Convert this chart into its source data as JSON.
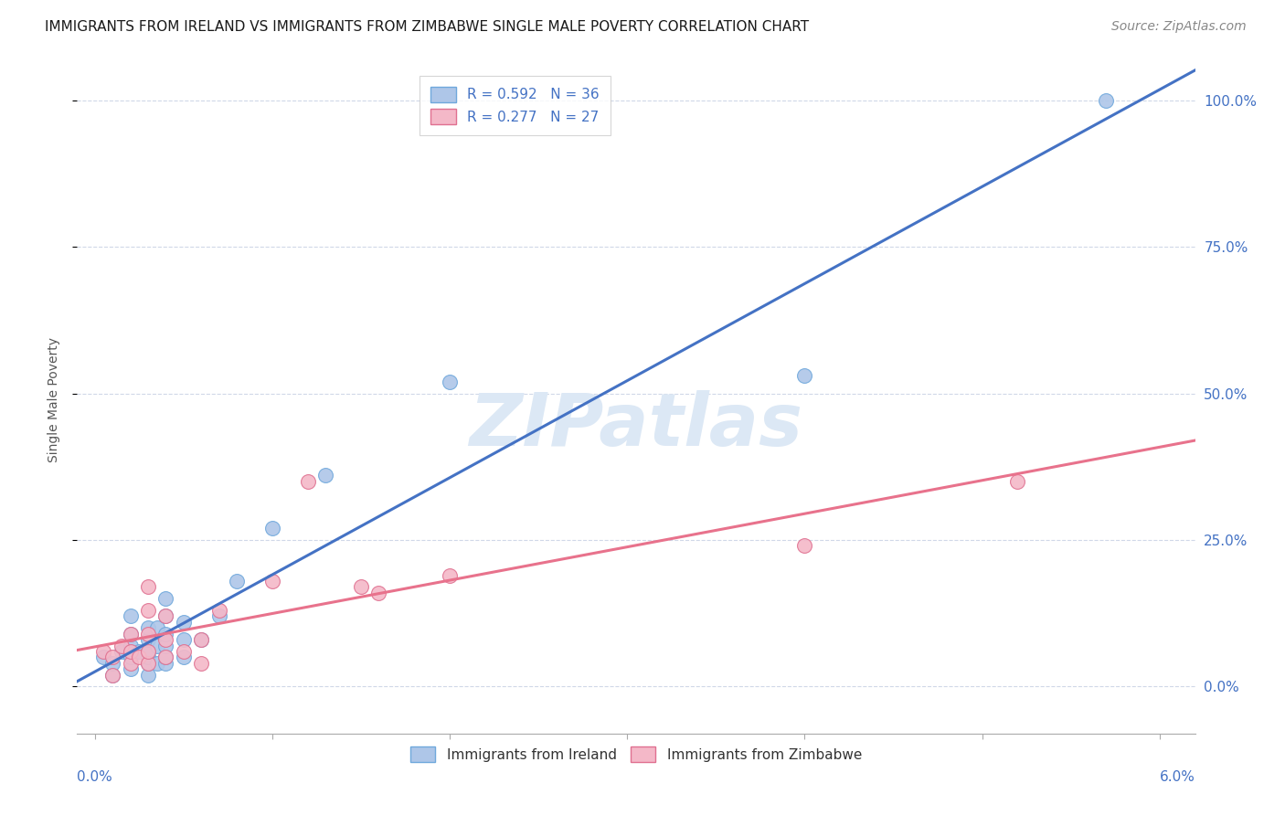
{
  "title": "IMMIGRANTS FROM IRELAND VS IMMIGRANTS FROM ZIMBABWE SINGLE MALE POVERTY CORRELATION CHART",
  "source": "Source: ZipAtlas.com",
  "ylabel": "Single Male Poverty",
  "ytick_labels": [
    "0.0%",
    "25.0%",
    "50.0%",
    "75.0%",
    "100.0%"
  ],
  "ytick_values": [
    0.0,
    0.25,
    0.5,
    0.75,
    1.0
  ],
  "xtick_values": [
    0.0,
    0.01,
    0.02,
    0.03,
    0.04,
    0.05,
    0.06
  ],
  "xlim": [
    -0.001,
    0.062
  ],
  "ylim": [
    -0.08,
    1.06
  ],
  "legend_entry_ireland": "R = 0.592   N = 36",
  "legend_entry_zimbabwe": "R = 0.277   N = 27",
  "ireland_color": "#aec6e8",
  "ireland_edge": "#6fa8dc",
  "ireland_line": "#4472c4",
  "zimbabwe_color": "#f4b8c8",
  "zimbabwe_edge": "#e07090",
  "zimbabwe_line": "#e8728c",
  "ireland_x": [
    0.0005,
    0.001,
    0.001,
    0.0015,
    0.002,
    0.002,
    0.002,
    0.002,
    0.002,
    0.0025,
    0.003,
    0.003,
    0.003,
    0.003,
    0.003,
    0.003,
    0.0035,
    0.0035,
    0.0035,
    0.004,
    0.004,
    0.004,
    0.004,
    0.004,
    0.004,
    0.005,
    0.005,
    0.005,
    0.006,
    0.007,
    0.008,
    0.01,
    0.013,
    0.02,
    0.04,
    0.057
  ],
  "ireland_y": [
    0.05,
    0.02,
    0.04,
    0.06,
    0.03,
    0.05,
    0.07,
    0.09,
    0.12,
    0.06,
    0.02,
    0.04,
    0.05,
    0.06,
    0.08,
    0.1,
    0.04,
    0.07,
    0.1,
    0.04,
    0.05,
    0.07,
    0.09,
    0.12,
    0.15,
    0.05,
    0.08,
    0.11,
    0.08,
    0.12,
    0.18,
    0.27,
    0.36,
    0.52,
    0.53,
    1.0
  ],
  "zimbabwe_x": [
    0.0005,
    0.001,
    0.001,
    0.0015,
    0.002,
    0.002,
    0.002,
    0.0025,
    0.003,
    0.003,
    0.003,
    0.003,
    0.003,
    0.004,
    0.004,
    0.004,
    0.005,
    0.006,
    0.006,
    0.007,
    0.01,
    0.012,
    0.015,
    0.016,
    0.02,
    0.04,
    0.052
  ],
  "zimbabwe_y": [
    0.06,
    0.02,
    0.05,
    0.07,
    0.04,
    0.06,
    0.09,
    0.05,
    0.04,
    0.06,
    0.09,
    0.13,
    0.17,
    0.05,
    0.08,
    0.12,
    0.06,
    0.04,
    0.08,
    0.13,
    0.18,
    0.35,
    0.17,
    0.16,
    0.19,
    0.24,
    0.35
  ],
  "background_color": "#ffffff",
  "watermark_text": "ZIPatlas",
  "watermark_color": "#dce8f5",
  "grid_color": "#d0d8e8",
  "title_fontsize": 11,
  "source_fontsize": 10,
  "axis_label_fontsize": 10,
  "tick_fontsize": 10,
  "legend_fontsize": 11
}
